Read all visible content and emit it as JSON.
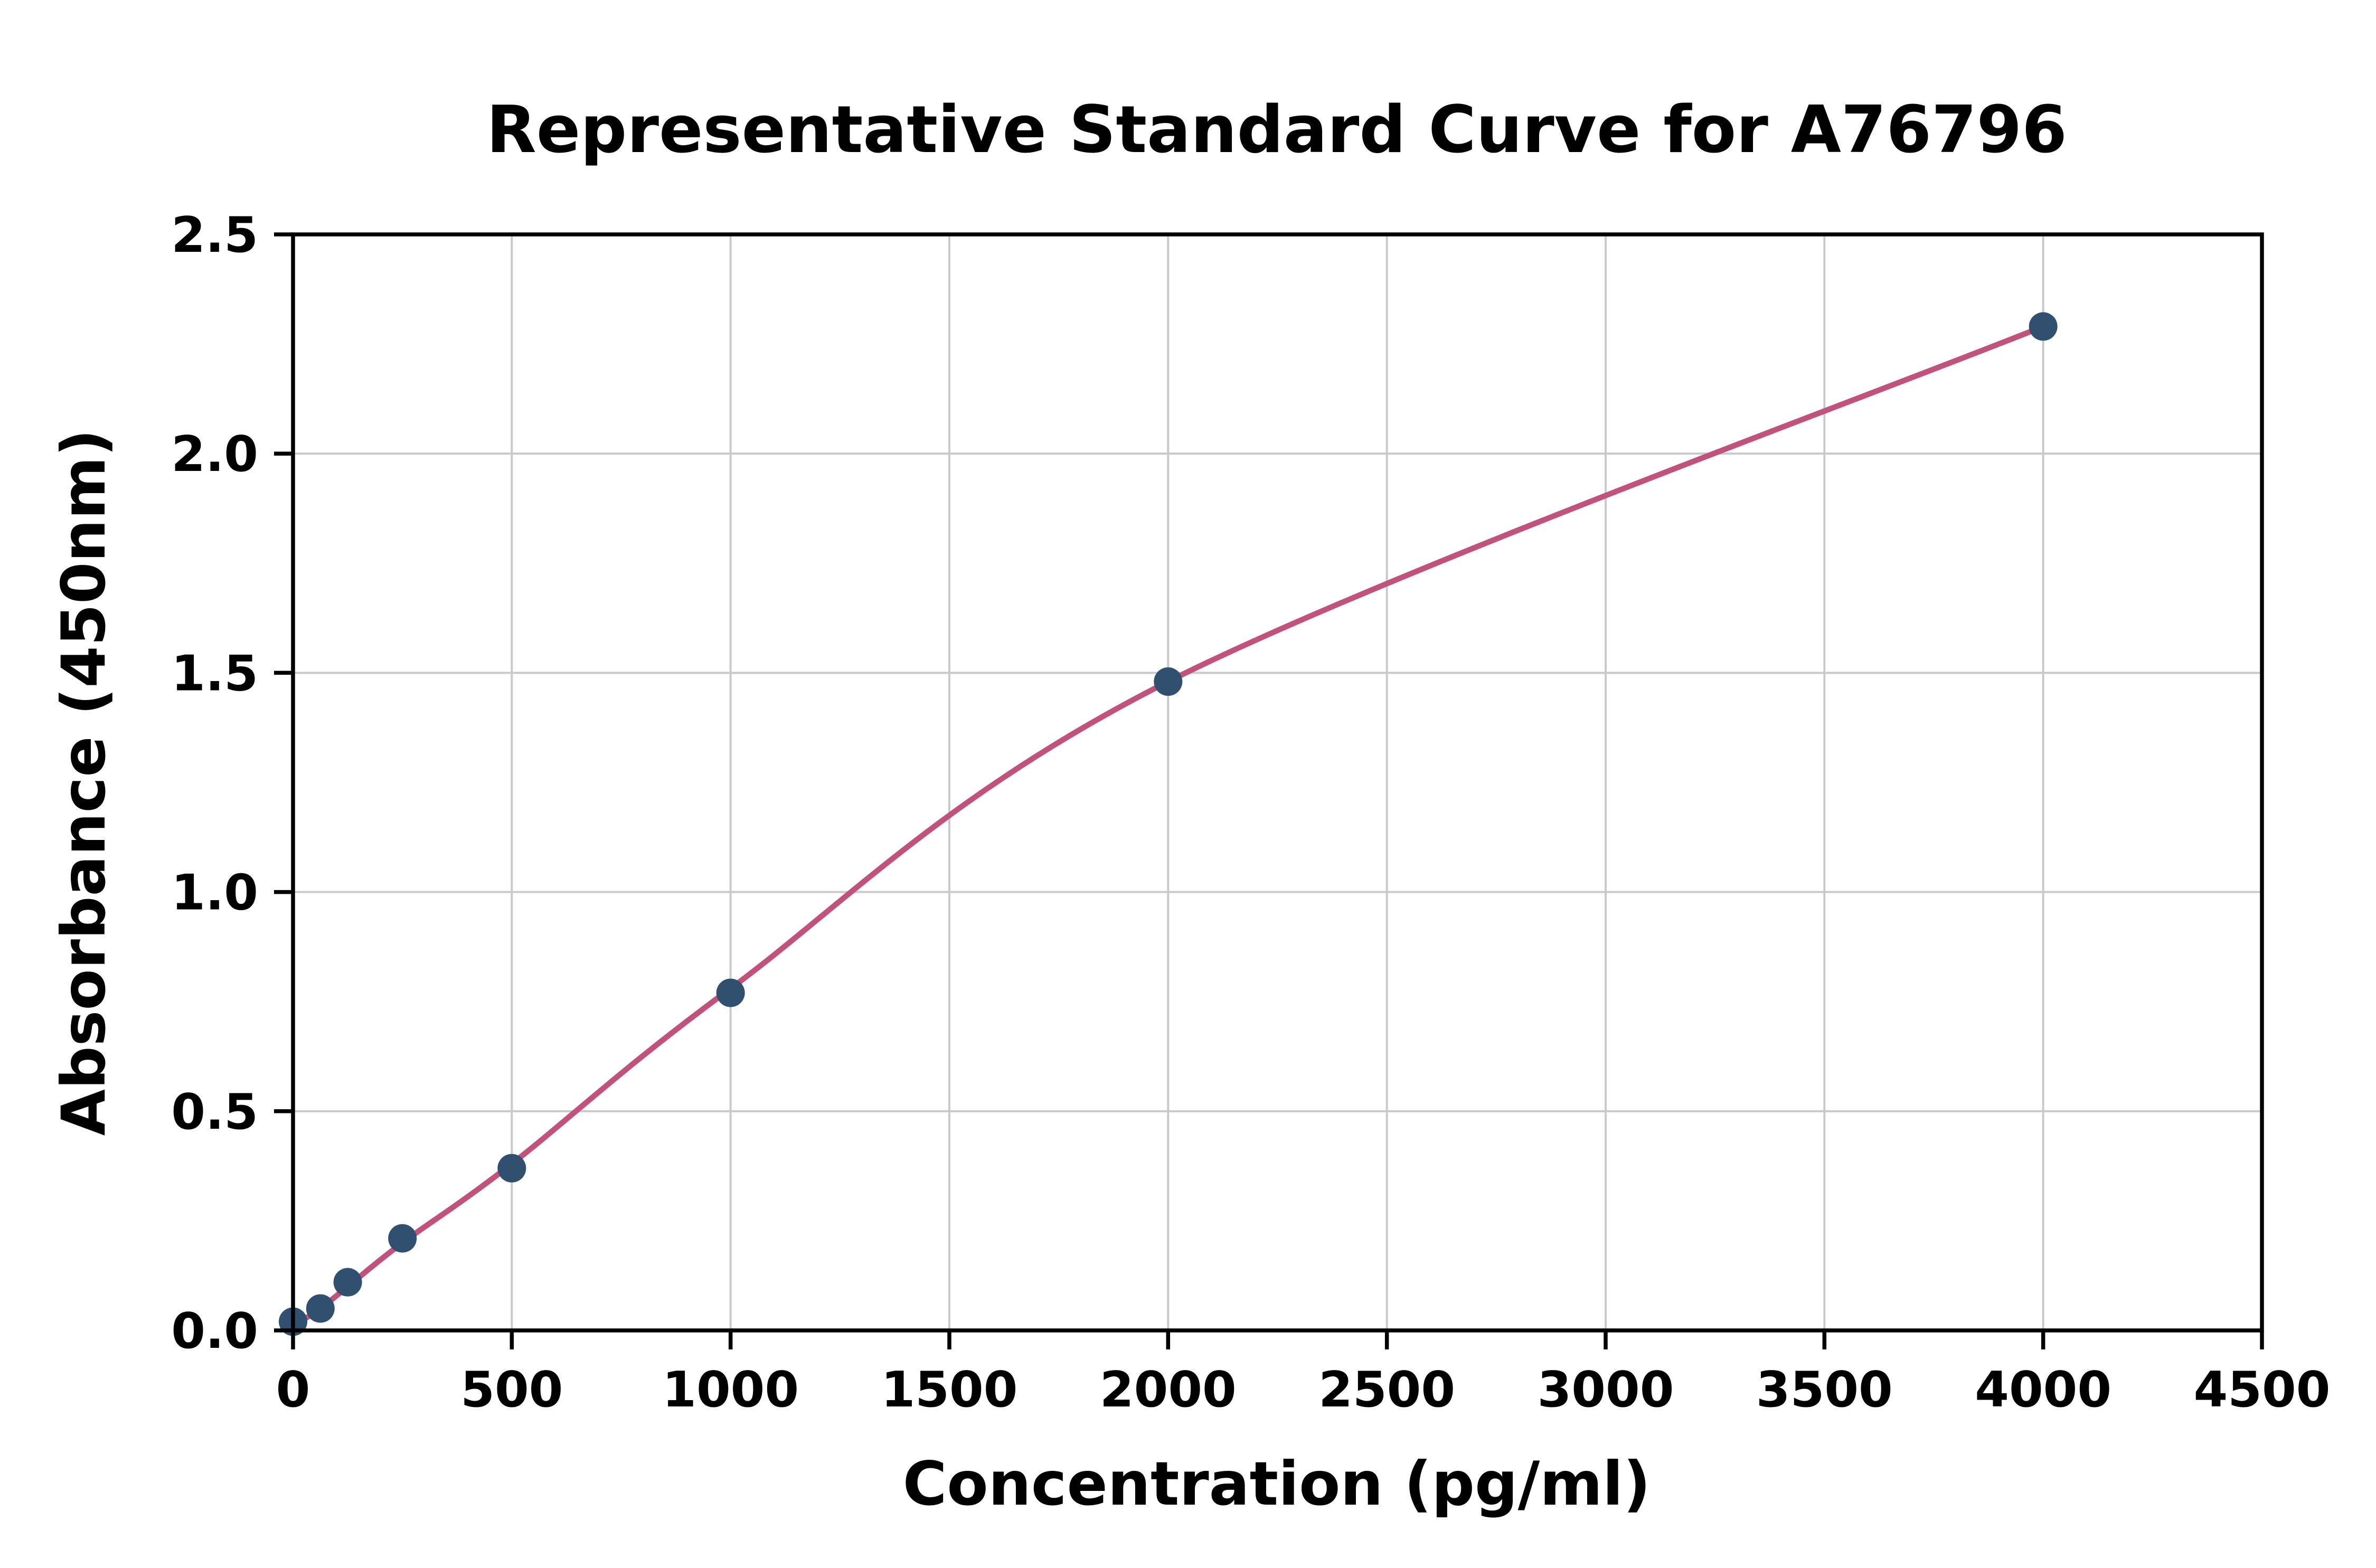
{
  "chart_data": {
    "type": "scatter",
    "title": "Representative Standard Curve for A76796",
    "xlabel": "Concentration (pg/ml)",
    "ylabel": "Absorbance (450nm)",
    "xlim": [
      0,
      4500
    ],
    "ylim": [
      0,
      2.5
    ],
    "x_ticks": [
      0,
      500,
      1000,
      1500,
      2000,
      2500,
      3000,
      3500,
      4000,
      4500
    ],
    "x_tick_labels": [
      "0",
      "500",
      "1000",
      "1500",
      "2000",
      "2500",
      "3000",
      "3500",
      "4000",
      "4500"
    ],
    "y_ticks": [
      0,
      0.5,
      1,
      1.5,
      2,
      2.5
    ],
    "y_tick_labels": [
      "0.0",
      "0.5",
      "1.0",
      "1.5",
      "2.0",
      "2.5"
    ],
    "grid": true,
    "legend_position": "none",
    "series": [
      {
        "name": "standard-data-points",
        "type": "scatter",
        "color": "#31506f",
        "x": [
          0,
          62.5,
          125,
          250,
          500,
          1000,
          2000,
          4000
        ],
        "y": [
          0.02,
          0.05,
          0.11,
          0.21,
          0.37,
          0.77,
          1.48,
          2.29
        ]
      },
      {
        "name": "fit-curve",
        "type": "line",
        "color": "#c0527c",
        "x": [
          0,
          62.5,
          125,
          250,
          500,
          1000,
          2000,
          4000
        ],
        "y": [
          0.01,
          0.05,
          0.1,
          0.2,
          0.38,
          0.78,
          1.48,
          2.29
        ]
      }
    ],
    "styles": {
      "grid_color": "#c9c9c9",
      "axis_color": "#000000",
      "background_color": "#ffffff",
      "marker_radius": 9,
      "curve_width": 3.5
    }
  }
}
